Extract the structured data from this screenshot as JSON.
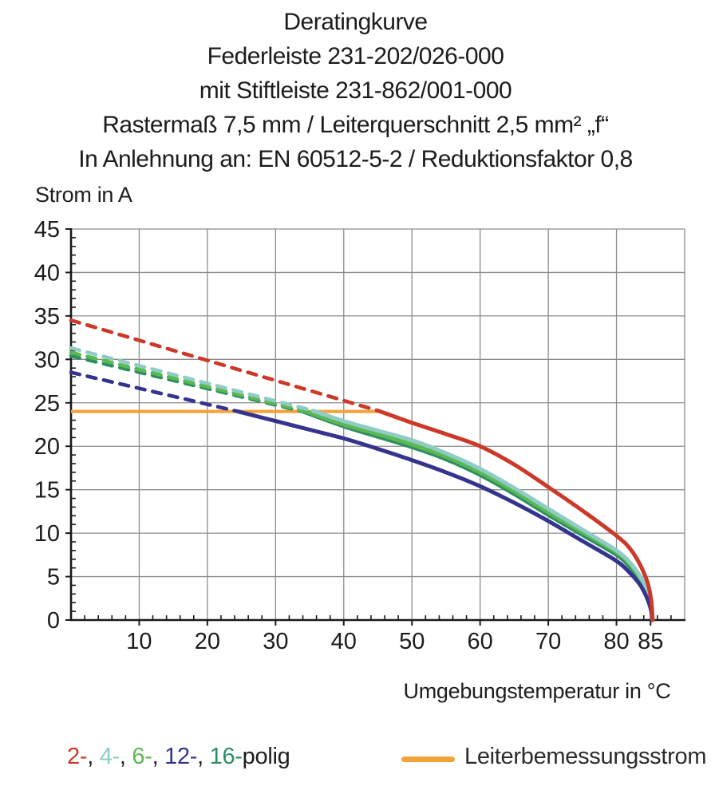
{
  "header": {
    "lines": [
      "Deratingkurve",
      "Federleiste 231-202/026-000",
      "mit Stiftleiste 231-862/001-000",
      "Rastermaß 7,5 mm / Leiterquerschnitt 2,5 mm² „f“",
      "In Anlehnung an: EN 60512-5-2 / Reduktionsfaktor 0,8"
    ]
  },
  "chart_data": {
    "type": "line",
    "title": "Deratingkurve",
    "xlabel": "Umgebungstemperatur in °C",
    "ylabel": "Strom in A",
    "xlim": [
      0,
      90
    ],
    "ylim": [
      0,
      45
    ],
    "grid": true,
    "grid_color": "#8c8c8c",
    "axis_color": "#1a1a1a",
    "x_gridlines": [
      10,
      20,
      30,
      40,
      50,
      60,
      70,
      80,
      90
    ],
    "y_gridlines": [
      5,
      10,
      15,
      20,
      25,
      30,
      35,
      40,
      45
    ],
    "x_ticks": [
      {
        "value": 10,
        "label": "10"
      },
      {
        "value": 20,
        "label": "20"
      },
      {
        "value": 30,
        "label": "30"
      },
      {
        "value": 40,
        "label": "40"
      },
      {
        "value": 50,
        "label": "50"
      },
      {
        "value": 60,
        "label": "60"
      },
      {
        "value": 70,
        "label": "70"
      },
      {
        "value": 80,
        "label": "80"
      },
      {
        "value": 85,
        "label": "85"
      }
    ],
    "y_ticks": [
      {
        "value": 0,
        "label": "0"
      },
      {
        "value": 5,
        "label": "5"
      },
      {
        "value": 10,
        "label": "10"
      },
      {
        "value": 15,
        "label": "15"
      },
      {
        "value": 20,
        "label": "20"
      },
      {
        "value": 25,
        "label": "25"
      },
      {
        "value": 30,
        "label": "30"
      },
      {
        "value": 35,
        "label": "35"
      },
      {
        "value": 40,
        "label": "40"
      },
      {
        "value": 45,
        "label": "45"
      }
    ],
    "x_minor_step": 2,
    "y_minor_step": 1,
    "series": [
      {
        "name": "16-polig",
        "color": "#2d8e62",
        "dashed": [
          [
            0,
            30.4
          ],
          [
            34,
            24.0
          ]
        ],
        "solid": [
          [
            34,
            24.0
          ],
          [
            40,
            22.3
          ],
          [
            45,
            21.1
          ],
          [
            50,
            19.9
          ],
          [
            55,
            18.5
          ],
          [
            60,
            16.7
          ],
          [
            65,
            14.5
          ],
          [
            70,
            12.1
          ],
          [
            75,
            9.8
          ],
          [
            80,
            7.5
          ],
          [
            82,
            6.1
          ],
          [
            83.5,
            4.5
          ],
          [
            84.6,
            2.8
          ],
          [
            85.1,
            1.3
          ],
          [
            85.3,
            0
          ]
        ]
      },
      {
        "name": "6-polig",
        "color": "#5cb853",
        "dashed": [
          [
            0,
            30.8
          ],
          [
            34.5,
            24.0
          ]
        ],
        "solid": [
          [
            34.5,
            24.0
          ],
          [
            40,
            22.5
          ],
          [
            45,
            21.4
          ],
          [
            50,
            20.2
          ],
          [
            55,
            18.8
          ],
          [
            60,
            17.0
          ],
          [
            65,
            14.8
          ],
          [
            70,
            12.4
          ],
          [
            75,
            10.1
          ],
          [
            80,
            7.8
          ],
          [
            82,
            6.4
          ],
          [
            83.5,
            4.8
          ],
          [
            84.6,
            3.0
          ],
          [
            85.1,
            1.5
          ],
          [
            85.3,
            0
          ]
        ]
      },
      {
        "name": "4-polig",
        "color": "#8fccc5",
        "dashed": [
          [
            0,
            31.3
          ],
          [
            35.5,
            24.1
          ]
        ],
        "solid": [
          [
            35.5,
            24.1
          ],
          [
            40,
            22.9
          ],
          [
            45,
            21.8
          ],
          [
            50,
            20.7
          ],
          [
            55,
            19.2
          ],
          [
            60,
            17.4
          ],
          [
            65,
            15.2
          ],
          [
            70,
            12.8
          ],
          [
            75,
            10.4
          ],
          [
            80,
            8.0
          ],
          [
            82,
            6.6
          ],
          [
            83.5,
            5.0
          ],
          [
            84.6,
            3.2
          ],
          [
            85.1,
            1.6
          ],
          [
            85.3,
            0
          ]
        ]
      },
      {
        "name": "12-polig",
        "color": "#34348e",
        "dashed": [
          [
            0,
            28.5
          ],
          [
            24.5,
            24.0
          ]
        ],
        "solid": [
          [
            24.5,
            24.0
          ],
          [
            30,
            22.9
          ],
          [
            35,
            21.9
          ],
          [
            40,
            20.9
          ],
          [
            45,
            19.7
          ],
          [
            50,
            18.4
          ],
          [
            55,
            17.0
          ],
          [
            60,
            15.4
          ],
          [
            65,
            13.5
          ],
          [
            70,
            11.4
          ],
          [
            75,
            9.1
          ],
          [
            80,
            6.8
          ],
          [
            82,
            5.4
          ],
          [
            83.5,
            4.0
          ],
          [
            84.6,
            2.3
          ],
          [
            85.1,
            1.0
          ],
          [
            85.2,
            0
          ]
        ]
      },
      {
        "name": "2-polig",
        "color": "#cc3929",
        "dashed": [
          [
            0,
            34.5
          ],
          [
            45,
            24.1
          ]
        ],
        "solid": [
          [
            45,
            24.1
          ],
          [
            50,
            22.7
          ],
          [
            55,
            21.4
          ],
          [
            60,
            20.0
          ],
          [
            65,
            17.9
          ],
          [
            70,
            15.3
          ],
          [
            75,
            12.6
          ],
          [
            80,
            9.7
          ],
          [
            82,
            8.2
          ],
          [
            83.5,
            6.3
          ],
          [
            84.6,
            4.2
          ],
          [
            85.1,
            2.2
          ],
          [
            85.3,
            0
          ]
        ]
      }
    ],
    "rated_current_line": {
      "name": "Leiterbemessungsstrom",
      "color": "#f2a23a",
      "value": 24,
      "x_start": 0,
      "x_end": 45.5
    },
    "legend_position": "bottom"
  },
  "legend_poles": {
    "entries": [
      {
        "label": "2-",
        "color": "#cc3929"
      },
      {
        "label": "4-",
        "color": "#8fccc5"
      },
      {
        "label": "6-",
        "color": "#5cb853"
      },
      {
        "label": "12-",
        "color": "#34348e"
      },
      {
        "label": "16-",
        "color": "#2d8e62"
      }
    ],
    "separator": ", ",
    "suffix": "polig",
    "suffix_color": "#1d1d1d"
  },
  "legend_rated": {
    "label": "Leiterbemessungsstrom",
    "color": "#f2a23a"
  }
}
